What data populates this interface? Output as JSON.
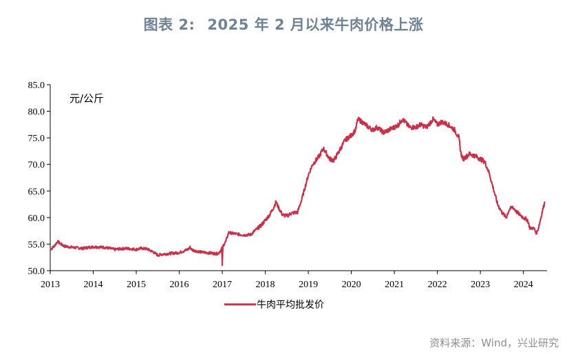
{
  "header": {
    "figure_num": "图表 2:",
    "title": "2025 年 2 月以来牛肉价格上涨"
  },
  "source": "资料来源：Wind，兴业研究",
  "colors": {
    "line": "#c8314a",
    "title": "#6f8296",
    "axis": "#000000",
    "source": "#8a8f94"
  },
  "chart_data": {
    "type": "line",
    "unit_label": "元/公斤",
    "ylim": [
      50.0,
      85.0
    ],
    "y_ticks": [
      "50.0",
      "55.0",
      "60.0",
      "65.0",
      "70.0",
      "75.0",
      "80.0",
      "85.0"
    ],
    "x_ticks": [
      "2013",
      "2014",
      "2015",
      "2016",
      "2017",
      "2018",
      "2019",
      "2020",
      "2021",
      "2022",
      "2023",
      "2024"
    ],
    "xlim": [
      2013.0,
      2024.55
    ],
    "grid": false,
    "legend_position": "bottom",
    "series": [
      {
        "name": "牛肉平均批发价",
        "x": [
          2013.0,
          2013.08,
          2013.17,
          2013.25,
          2013.33,
          2013.5,
          2013.75,
          2014.0,
          2014.25,
          2014.5,
          2014.75,
          2015.0,
          2015.1,
          2015.25,
          2015.4,
          2015.5,
          2015.6,
          2015.75,
          2016.0,
          2016.2,
          2016.25,
          2016.3,
          2016.5,
          2016.75,
          2016.9,
          2017.0,
          2017.02,
          2017.08,
          2017.15,
          2017.25,
          2017.5,
          2017.67,
          2017.75,
          2017.9,
          2018.0,
          2018.1,
          2018.2,
          2018.25,
          2018.3,
          2018.4,
          2018.5,
          2018.6,
          2018.75,
          2018.85,
          2019.0,
          2019.1,
          2019.25,
          2019.35,
          2019.5,
          2019.6,
          2019.75,
          2019.85,
          2020.0,
          2020.1,
          2020.15,
          2020.25,
          2020.4,
          2020.5,
          2020.6,
          2020.75,
          2021.0,
          2021.1,
          2021.18,
          2021.25,
          2021.35,
          2021.5,
          2021.6,
          2021.75,
          2021.9,
          2022.0,
          2022.1,
          2022.25,
          2022.4,
          2022.5,
          2022.55,
          2022.6,
          2022.75,
          2022.9,
          2023.0,
          2023.1,
          2023.2,
          2023.3,
          2023.4,
          2023.5,
          2023.6,
          2023.67,
          2023.75,
          2023.85,
          2024.0,
          2024.1,
          2024.15,
          2024.25,
          2024.3,
          2024.35,
          2024.45,
          2024.5
        ],
        "values": [
          54.0,
          54.5,
          55.5,
          55.0,
          54.6,
          54.4,
          54.2,
          54.5,
          54.4,
          54.0,
          54.2,
          54.0,
          54.2,
          54.1,
          53.5,
          52.9,
          53.1,
          53.2,
          53.4,
          54.0,
          54.4,
          53.9,
          53.5,
          53.3,
          53.2,
          54.2,
          54.7,
          55.5,
          57.2,
          57.0,
          56.7,
          56.8,
          57.5,
          58.5,
          59.5,
          60.5,
          62.0,
          63.0,
          62.0,
          60.5,
          60.3,
          60.8,
          61.0,
          63.5,
          68.0,
          70.0,
          71.5,
          73.0,
          71.0,
          70.8,
          73.0,
          74.5,
          75.5,
          76.5,
          78.5,
          78.0,
          77.0,
          76.5,
          77.0,
          76.0,
          77.0,
          77.5,
          78.5,
          78.0,
          77.0,
          77.0,
          77.5,
          77.0,
          78.5,
          77.5,
          78.0,
          77.5,
          76.5,
          75.0,
          72.0,
          71.0,
          72.0,
          71.5,
          71.0,
          70.5,
          68.5,
          65.5,
          62.5,
          61.0,
          60.0,
          61.5,
          62.0,
          61.0,
          60.0,
          59.5,
          58.0,
          58.0,
          57.0,
          58.0,
          61.5,
          63.0
        ]
      }
    ]
  }
}
